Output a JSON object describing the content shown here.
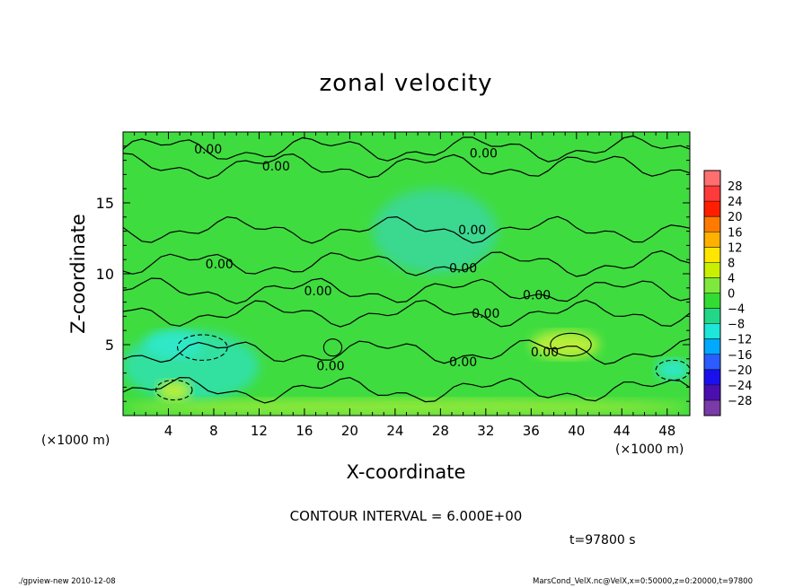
{
  "title": "zonal velocity",
  "xlabel": "X-coordinate",
  "ylabel": "Z-coordinate",
  "x_unit": "(×1000 m)",
  "y_unit": "(×1000 m)",
  "contour_interval_text": "CONTOUR INTERVAL = 6.000E+00",
  "time_text": "t=97800 s",
  "footer_left": "./gpview-new   2010-12-08",
  "footer_right": "MarsCond_VelX.nc@VelX,x=0:50000,z=0:20000,t=97800",
  "colors": {
    "field_green": "#3fdc3f",
    "field_light": "#7fe83c",
    "field_cyan": "#33e6b0"
  },
  "chart_data": {
    "type": "heatmap",
    "title": "zonal velocity",
    "xlabel": "X-coordinate",
    "ylabel": "Z-coordinate",
    "xlim": [
      0,
      50
    ],
    "ylim": [
      0,
      20
    ],
    "x_ticks": [
      4,
      8,
      12,
      16,
      20,
      24,
      28,
      32,
      36,
      40,
      44,
      48
    ],
    "y_ticks": [
      5,
      10,
      15
    ],
    "contour_labels": [
      {
        "text": "0.00",
        "x": 7.5,
        "z": 18.8
      },
      {
        "text": "0.00",
        "x": 13.5,
        "z": 17.6
      },
      {
        "text": "0.00",
        "x": 31.8,
        "z": 18.5
      },
      {
        "text": "0.00",
        "x": 30.8,
        "z": 13.1
      },
      {
        "text": "0.00",
        "x": 8.5,
        "z": 10.7
      },
      {
        "text": "0.00",
        "x": 30.0,
        "z": 10.4
      },
      {
        "text": "0.00",
        "x": 17.2,
        "z": 8.8
      },
      {
        "text": "0.00",
        "x": 36.5,
        "z": 8.5
      },
      {
        "text": "0.00",
        "x": 32.0,
        "z": 7.2
      },
      {
        "text": "0.00",
        "x": 18.3,
        "z": 3.5
      },
      {
        "text": "0.00",
        "x": 30.0,
        "z": 3.8
      },
      {
        "text": "0.00",
        "x": 37.2,
        "z": 4.5
      }
    ],
    "colorbar": {
      "levels": [
        -28,
        -24,
        -20,
        -16,
        -12,
        -8,
        -4,
        0,
        4,
        8,
        12,
        16,
        20,
        24,
        28
      ],
      "labels": [
        "28",
        "24",
        "20",
        "16",
        "12",
        "8",
        "4",
        "0",
        "−4",
        "−8",
        "−12",
        "−16",
        "−20",
        "−24",
        "−28"
      ],
      "colors": [
        "#ff6f6f",
        "#ff3a3a",
        "#ff1f00",
        "#ff7a00",
        "#ffb000",
        "#ffe600",
        "#c8f000",
        "#7fe83c",
        "#33dc33",
        "#22d888",
        "#1ee6d8",
        "#00a8ff",
        "#2a5cff",
        "#1a10ee",
        "#4b0fb0",
        "#7a3aa8"
      ]
    },
    "cells": [
      {
        "x": [
          0,
          50
        ],
        "z": [
          0,
          20
        ],
        "value": 0,
        "color": "#3fdc3f"
      },
      {
        "x": [
          0,
          12
        ],
        "z": [
          1,
          6
        ],
        "value": -3,
        "color": "#33e0a0"
      },
      {
        "x": [
          2,
          7
        ],
        "z": [
          4,
          6
        ],
        "value": -7,
        "color": "#2ee8c8"
      },
      {
        "x": [
          22,
          33
        ],
        "z": [
          10,
          16
        ],
        "value": -2,
        "color": "#3ad890"
      },
      {
        "x": [
          36,
          42
        ],
        "z": [
          4,
          6
        ],
        "value": 5,
        "color": "#b8ee3a"
      },
      {
        "x": [
          3,
          6
        ],
        "z": [
          1,
          2.5
        ],
        "value": 5,
        "color": "#b8ee3a"
      },
      {
        "x": [
          47,
          50
        ],
        "z": [
          2.5,
          4
        ],
        "value": -7,
        "color": "#2ee8c8"
      },
      {
        "x": [
          0,
          50
        ],
        "z": [
          0,
          1.2
        ],
        "value": 2,
        "color": "#8ee83a"
      }
    ]
  }
}
